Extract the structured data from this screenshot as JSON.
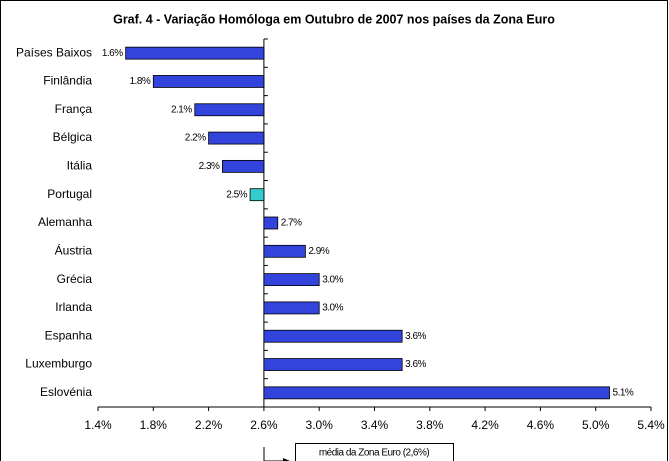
{
  "chart_data": {
    "type": "bar",
    "orientation": "horizontal",
    "title": "Graf. 4 - Variação Homóloga em Outubro de 2007 nos países da Zona Euro",
    "categories": [
      "Países Baixos",
      "Finlândia",
      "França",
      "Bélgica",
      "Itália",
      "Portugal",
      "Alemanha",
      "Áustria",
      "Grécia",
      "Irlanda",
      "Espanha",
      "Luxemburgo",
      "Eslovénia"
    ],
    "values": [
      1.6,
      1.8,
      2.1,
      2.2,
      2.3,
      2.5,
      2.7,
      2.9,
      3.0,
      3.0,
      3.6,
      3.6,
      5.1
    ],
    "value_labels": [
      "1.6%",
      "1.8%",
      "2.1%",
      "2.2%",
      "2.3%",
      "2.5%",
      "2.7%",
      "2.9%",
      "3.0%",
      "3.0%",
      "3.6%",
      "3.6%",
      "5.1%"
    ],
    "colors": [
      "#3344dd",
      "#3344dd",
      "#3344dd",
      "#3344dd",
      "#3344dd",
      "#33cccc",
      "#3344dd",
      "#3344dd",
      "#3344dd",
      "#3344dd",
      "#3344dd",
      "#3344dd",
      "#3344dd"
    ],
    "base": 2.6,
    "xlim": [
      1.4,
      5.4
    ],
    "xticks": [
      {
        "value": 1.4,
        "label": "1.4%"
      },
      {
        "value": 1.8,
        "label": "1.8%"
      },
      {
        "value": 2.2,
        "label": "2.2%"
      },
      {
        "value": 2.6,
        "label": "2.6%"
      },
      {
        "value": 3.0,
        "label": "3.0%"
      },
      {
        "value": 3.4,
        "label": "3.4%"
      },
      {
        "value": 3.8,
        "label": "3.8%"
      },
      {
        "value": 4.2,
        "label": "4.2%"
      },
      {
        "value": 4.6,
        "label": "4.6%"
      },
      {
        "value": 5.0,
        "label": "5.0%"
      },
      {
        "value": 5.4,
        "label": "5.4%"
      }
    ],
    "annotation": "média da Zona Euro (2,6%)"
  }
}
